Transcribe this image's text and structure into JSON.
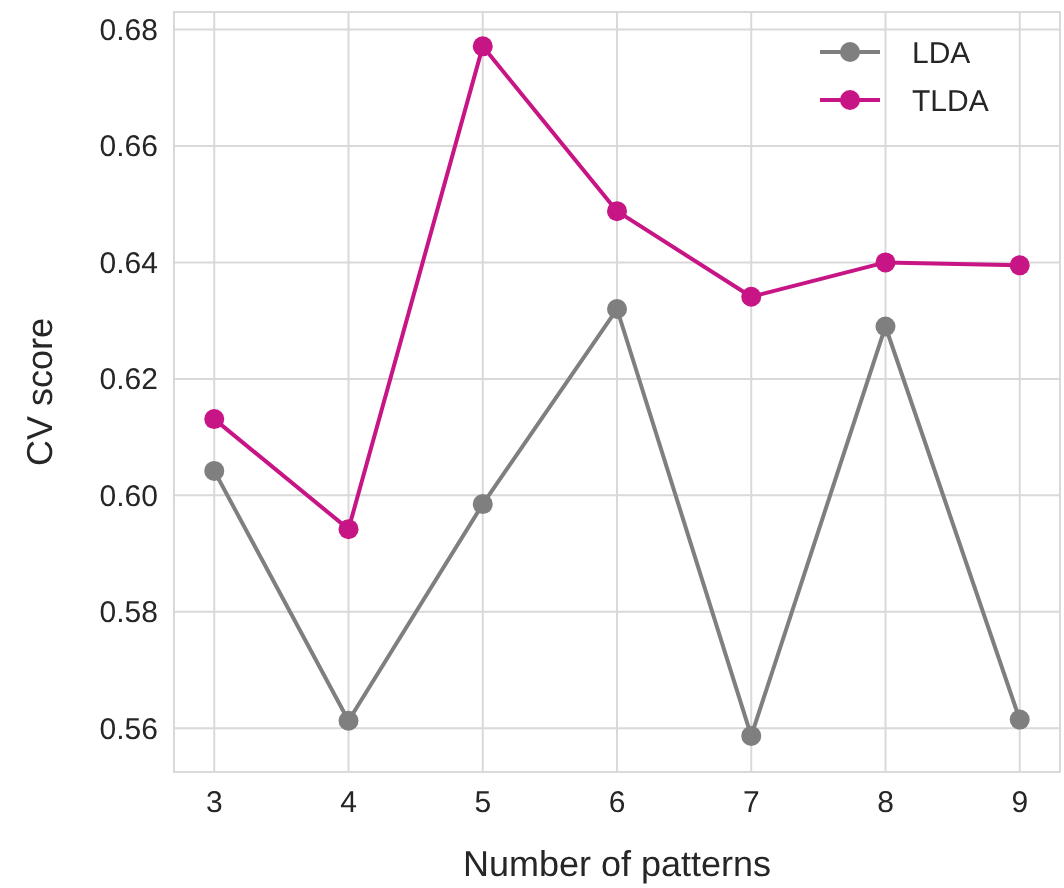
{
  "chart_data": {
    "type": "line",
    "xlabel": "Number of patterns",
    "ylabel": "CV score",
    "x": [
      3,
      4,
      5,
      6,
      7,
      8,
      9
    ],
    "series": [
      {
        "name": "LDA",
        "color": "#7f7f7f",
        "values": [
          0.6042,
          0.5613,
          0.5985,
          0.632,
          0.5587,
          0.629,
          0.5615
        ]
      },
      {
        "name": "TLDA",
        "color": "#c71585",
        "values": [
          0.6131,
          0.5942,
          0.6771,
          0.6488,
          0.6341,
          0.64,
          0.6395
        ]
      }
    ],
    "xlim": [
      2.7,
      9.3
    ],
    "xticks": [
      3,
      4,
      5,
      6,
      7,
      8,
      9
    ],
    "ylim": [
      0.5525,
      0.683
    ],
    "yticks": [
      {
        "value": 0.56,
        "label": "0.56"
      },
      {
        "value": 0.58,
        "label": "0.58"
      },
      {
        "value": 0.6,
        "label": "0.60"
      },
      {
        "value": 0.62,
        "label": "0.62"
      },
      {
        "value": 0.64,
        "label": "0.64"
      },
      {
        "value": 0.66,
        "label": "0.66"
      },
      {
        "value": 0.68,
        "label": "0.68"
      }
    ],
    "grid": true,
    "legend": "top right",
    "marker": "circle",
    "line_style": "solid"
  }
}
